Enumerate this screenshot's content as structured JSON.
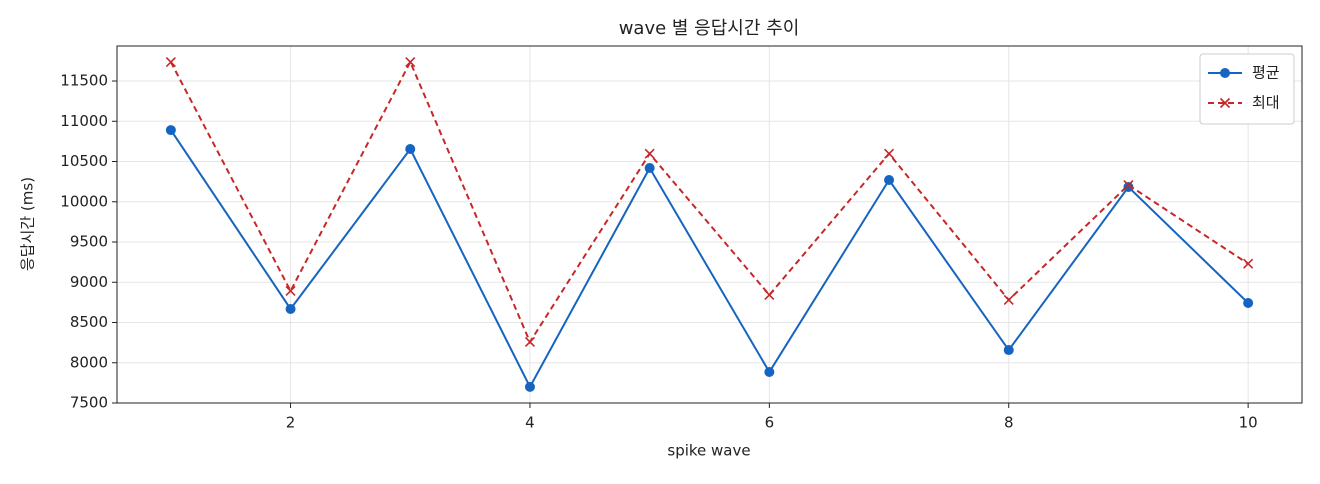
{
  "chart_data": {
    "type": "line",
    "title": "wave 별 응답시간 추이",
    "x_label": "spike wave",
    "y_label": "응답시간 (ms)",
    "x": [
      1,
      2,
      3,
      4,
      5,
      6,
      7,
      8,
      9,
      10
    ],
    "series": [
      {
        "name": "평균",
        "color": "#1565c0",
        "marker": "o",
        "dash": false,
        "values": [
          10890,
          8668,
          10655,
          7700,
          10419,
          7885,
          10270,
          8158,
          10183,
          8742
        ]
      },
      {
        "name": "최대",
        "color": "#c62828",
        "marker": "x",
        "dash": true,
        "values": [
          11736,
          8892,
          11736,
          8258,
          10597,
          8842,
          10597,
          8780,
          10208,
          9230
        ]
      }
    ],
    "xlim": [
      0.55,
      10.45
    ],
    "ylim": [
      7500,
      11935
    ],
    "xticks": [
      2,
      4,
      6,
      8,
      10
    ],
    "yticks": [
      7500,
      8000,
      8500,
      9000,
      9500,
      10000,
      10500,
      11000,
      11500
    ],
    "grid": true,
    "legend": "upper right"
  }
}
